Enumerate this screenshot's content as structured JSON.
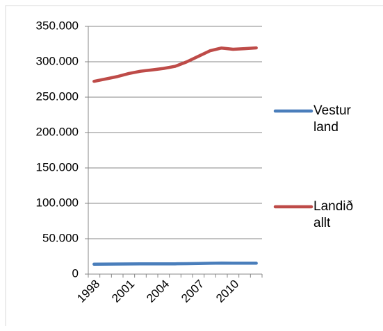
{
  "chart_data": {
    "type": "line",
    "categories": [
      "1998",
      null,
      null,
      "2001",
      null,
      null,
      "2004",
      null,
      null,
      "2007",
      null,
      null,
      "2010",
      null,
      null
    ],
    "series": [
      {
        "name": "Vestur land",
        "color": "#4a7ebb",
        "values": [
          14000,
          14100,
          14200,
          14300,
          14400,
          14500,
          14500,
          14500,
          14700,
          15000,
          15300,
          15600,
          15400,
          15400,
          15400
        ]
      },
      {
        "name": "Landið allt",
        "color": "#be4b48",
        "values": [
          272381,
          275712,
          279049,
          283361,
          286575,
          288471,
          290570,
          293577,
          299891,
          307672,
          315459,
          319368,
          317630,
          318452,
          319575
        ]
      }
    ],
    "ylim": [
      0,
      350000
    ],
    "yticks": [
      0,
      {
        "value": 50000,
        "label": "50.000"
      },
      {
        "value": 100000,
        "label": "100.000"
      },
      {
        "value": 150000,
        "label": "150.000"
      },
      {
        "value": 200000,
        "label": "200.000"
      },
      {
        "value": 250000,
        "label": "250.000"
      },
      {
        "value": 300000,
        "label": "300.000"
      },
      {
        "value": 350000,
        "label": "350.000"
      }
    ],
    "grid": true,
    "legend": "right"
  }
}
